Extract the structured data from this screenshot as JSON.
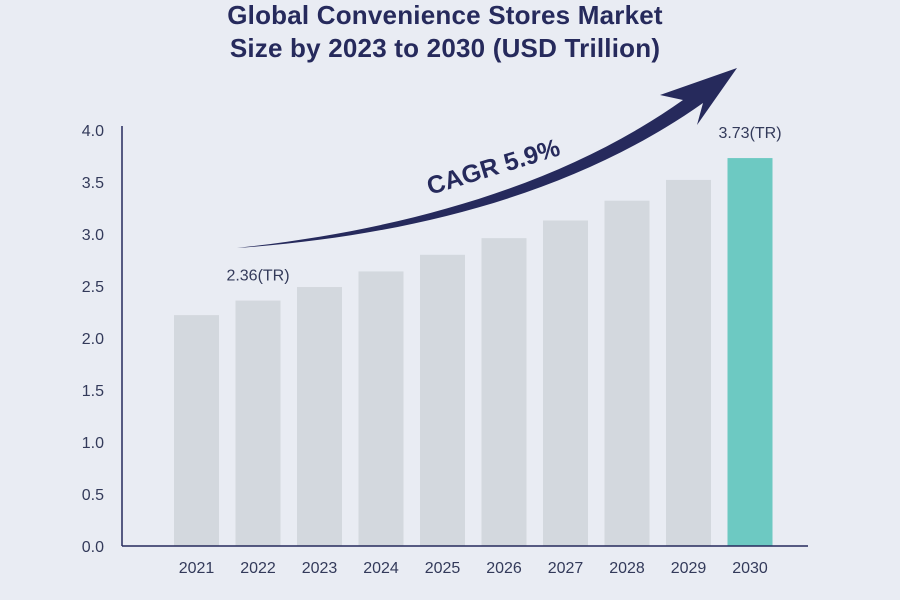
{
  "chart_data": {
    "type": "bar",
    "title_lines": [
      "Global Convenience Stores Market",
      "Size by 2023 to 2030 (USD Trillion)"
    ],
    "categories": [
      "2021",
      "2022",
      "2023",
      "2024",
      "2025",
      "2026",
      "2027",
      "2028",
      "2029",
      "2030"
    ],
    "values": [
      2.22,
      2.36,
      2.49,
      2.64,
      2.8,
      2.96,
      3.13,
      3.32,
      3.52,
      3.73
    ],
    "ylim": [
      0,
      4.0
    ],
    "yticks": [
      "0.0",
      "0.5",
      "1.0",
      "1.5",
      "2.0",
      "2.5",
      "3.0",
      "3.5",
      "4.0"
    ],
    "data_labels": [
      {
        "index": 1,
        "text": "2.36(TR)"
      },
      {
        "index": 9,
        "text": "3.73(TR)"
      }
    ],
    "annotation": "CAGR  5.9%",
    "highlight_index": 9,
    "colors": {
      "bar": "#d3d8de",
      "highlight": "#6dc9c2",
      "axis": "#262a5c",
      "text": "#333a5a",
      "arrow": "#262a5c",
      "title": "#262a5c"
    },
    "xlabel": "",
    "ylabel": "",
    "legend": "none",
    "grid": false
  }
}
